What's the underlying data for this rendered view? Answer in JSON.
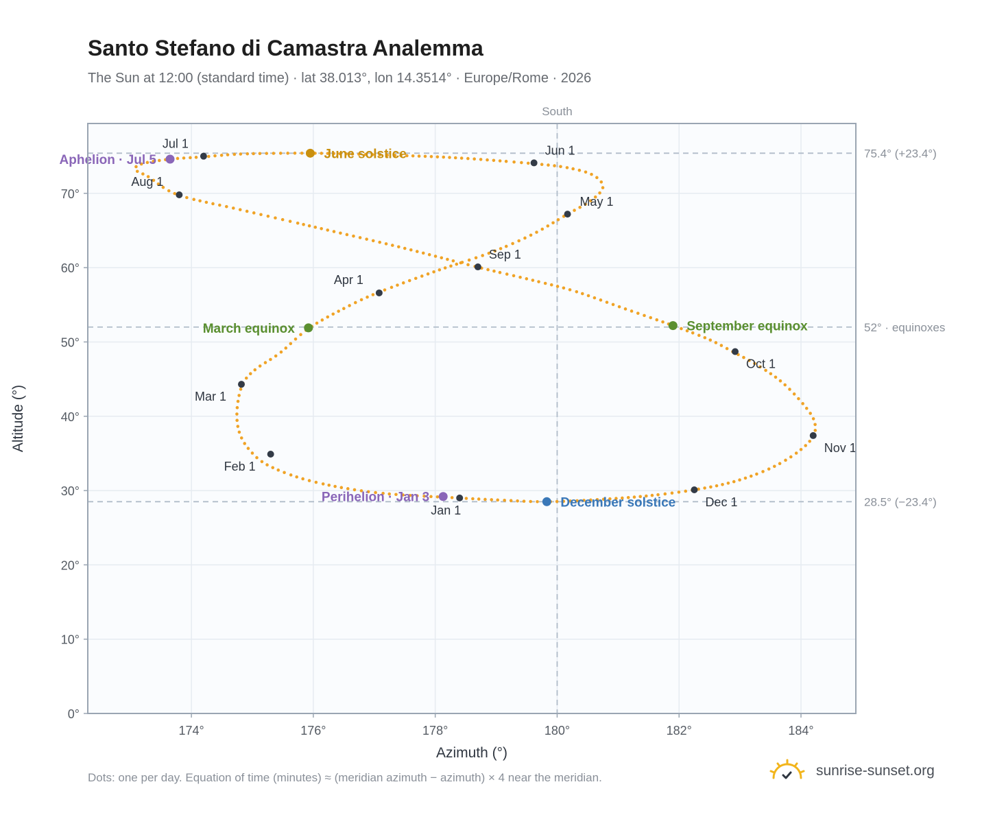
{
  "header": {
    "title": "Santo Stefano di Camastra Analemma",
    "subtitle": "The Sun at 12:00 (standard time) · lat 38.013°, lon 14.3514° · Europe/Rome · 2026"
  },
  "footer": {
    "note": "Dots: one per day. Equation of time (minutes) ≈ (meridian azimuth − azimuth) × 4 near the meridian.",
    "brand": "sunrise-sunset.org",
    "brand_icon": "sun-logo-icon"
  },
  "colors": {
    "curve": "#f0a326",
    "month_marker": "#333b47",
    "june_solstice": "#c9900f",
    "december_solstice": "#3a78b8",
    "equinox": "#5a8f30",
    "apsis": "#8a66b8",
    "reference_line": "#b0bcc9",
    "grid": "#e6ebf1",
    "plot_bg": "#fafcfe",
    "frame": "#9aa5b2"
  },
  "chart_data": {
    "type": "scatter",
    "xlabel": "Azimuth (°)",
    "ylabel": "Altitude (°)",
    "xlim": [
      172.3,
      184.9
    ],
    "ylim": [
      0,
      79.4
    ],
    "xticks": [
      174,
      176,
      178,
      180,
      182,
      184
    ],
    "xtick_labels": [
      "174°",
      "176°",
      "178°",
      "180°",
      "182°",
      "184°"
    ],
    "yticks": [
      0,
      10,
      20,
      30,
      40,
      50,
      60,
      70
    ],
    "ytick_labels": [
      "0°",
      "10°",
      "20°",
      "30°",
      "40°",
      "50°",
      "60°",
      "70°"
    ],
    "grid": true,
    "meridian": {
      "azimuth": 180,
      "label": "South"
    },
    "reference_lines": [
      {
        "altitude": 75.4,
        "label": "75.4° (+23.4°)"
      },
      {
        "altitude": 52,
        "label": "52° · equinoxes"
      },
      {
        "altitude": 28.5,
        "label": "28.5° (−23.4°)"
      }
    ],
    "series": [
      {
        "type": "daily-path",
        "points": [
          [
            178.38,
            29.0
          ],
          [
            177.05,
            29.7
          ],
          [
            176.0,
            31.2
          ],
          [
            175.28,
            33.3
          ],
          [
            174.95,
            35.5
          ],
          [
            174.78,
            38.0
          ],
          [
            174.75,
            41.0
          ],
          [
            174.84,
            44.3
          ],
          [
            175.05,
            46.3
          ],
          [
            175.45,
            48.5
          ],
          [
            175.92,
            51.8
          ],
          [
            176.5,
            54.5
          ],
          [
            177.05,
            56.6
          ],
          [
            178.0,
            59.5
          ],
          [
            178.9,
            62.0
          ],
          [
            179.6,
            64.5
          ],
          [
            180.17,
            67.2
          ],
          [
            180.55,
            69.0
          ],
          [
            180.75,
            70.8
          ],
          [
            180.6,
            72.4
          ],
          [
            180.2,
            73.4
          ],
          [
            179.6,
            74.0
          ],
          [
            178.3,
            74.8
          ],
          [
            177.0,
            75.2
          ],
          [
            175.95,
            75.4
          ],
          [
            174.85,
            75.3
          ],
          [
            174.18,
            74.9
          ],
          [
            173.65,
            74.6
          ],
          [
            173.2,
            74.0
          ],
          [
            173.08,
            73.2
          ],
          [
            173.3,
            72.2
          ],
          [
            173.78,
            69.8
          ],
          [
            174.8,
            67.8
          ],
          [
            176.0,
            65.5
          ],
          [
            177.4,
            62.8
          ],
          [
            178.68,
            60.1
          ],
          [
            179.6,
            58.3
          ],
          [
            180.3,
            56.8
          ],
          [
            181.1,
            54.5
          ],
          [
            181.9,
            52.2
          ],
          [
            182.5,
            50.3
          ],
          [
            182.9,
            48.6
          ],
          [
            183.3,
            46.8
          ],
          [
            183.7,
            44.5
          ],
          [
            184.05,
            41.5
          ],
          [
            184.22,
            39.3
          ],
          [
            184.2,
            37.3
          ],
          [
            183.95,
            35.2
          ],
          [
            183.5,
            33.0
          ],
          [
            182.9,
            31.2
          ],
          [
            182.25,
            30.1
          ],
          [
            181.5,
            29.3
          ],
          [
            180.7,
            28.8
          ],
          [
            179.83,
            28.5
          ],
          [
            179.1,
            28.7
          ],
          [
            178.38,
            29.0
          ]
        ]
      }
    ],
    "month_markers": [
      {
        "label": "Jan 1",
        "azimuth": 178.4,
        "altitude": 29.0
      },
      {
        "label": "Feb 1",
        "azimuth": 175.3,
        "altitude": 34.9
      },
      {
        "label": "Mar 1",
        "azimuth": 174.82,
        "altitude": 44.3
      },
      {
        "label": "Apr 1",
        "azimuth": 177.08,
        "altitude": 56.6
      },
      {
        "label": "May 1",
        "azimuth": 180.17,
        "altitude": 67.2
      },
      {
        "label": "Jun 1",
        "azimuth": 179.62,
        "altitude": 74.1
      },
      {
        "label": "Jul 1",
        "azimuth": 174.2,
        "altitude": 75.0
      },
      {
        "label": "Aug 1",
        "azimuth": 173.8,
        "altitude": 69.8
      },
      {
        "label": "Sep 1",
        "azimuth": 178.7,
        "altitude": 60.1
      },
      {
        "label": "Oct 1",
        "azimuth": 182.92,
        "altitude": 48.7
      },
      {
        "label": "Nov 1",
        "azimuth": 184.2,
        "altitude": 37.4
      },
      {
        "label": "Dec 1",
        "azimuth": 182.25,
        "altitude": 30.1
      }
    ],
    "events": [
      {
        "label": "June solstice",
        "azimuth": 175.95,
        "altitude": 75.4,
        "kind": "june_solstice"
      },
      {
        "label": "December solstice",
        "azimuth": 179.83,
        "altitude": 28.5,
        "kind": "december_solstice"
      },
      {
        "label": "March equinox",
        "azimuth": 175.92,
        "altitude": 51.9,
        "kind": "equinox"
      },
      {
        "label": "September equinox",
        "azimuth": 181.9,
        "altitude": 52.2,
        "kind": "equinox"
      },
      {
        "label": "Aphelion · Jul 5",
        "azimuth": 173.65,
        "altitude": 74.6,
        "kind": "apsis"
      },
      {
        "label": "Perihelion · Jan 3",
        "azimuth": 178.13,
        "altitude": 29.2,
        "kind": "apsis"
      }
    ]
  }
}
